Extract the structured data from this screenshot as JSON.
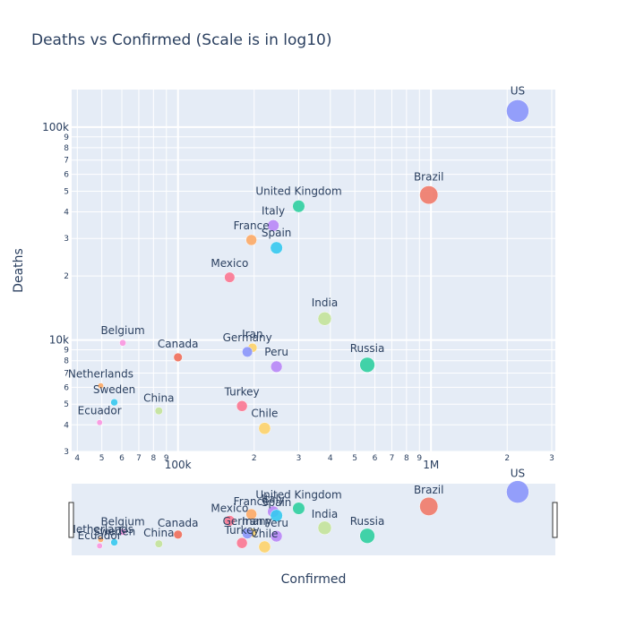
{
  "chart_data": {
    "type": "scatter",
    "title": "Deaths vs Confirmed (Scale is in log10)",
    "xlabel": "Confirmed",
    "ylabel": "Deaths",
    "x_scale": "log",
    "y_scale": "log",
    "xlim": [
      38000,
      3100000
    ],
    "ylim": [
      3000,
      150000
    ],
    "x_major_ticks": [
      {
        "value": 100000,
        "label": "100k"
      },
      {
        "value": 1000000,
        "label": "1M"
      }
    ],
    "x_minor_ticks": [
      {
        "value": 40000,
        "label": "4"
      },
      {
        "value": 50000,
        "label": "5"
      },
      {
        "value": 60000,
        "label": "6"
      },
      {
        "value": 70000,
        "label": "7"
      },
      {
        "value": 80000,
        "label": "8"
      },
      {
        "value": 90000,
        "label": "9"
      },
      {
        "value": 200000,
        "label": "2"
      },
      {
        "value": 300000,
        "label": "3"
      },
      {
        "value": 400000,
        "label": "4"
      },
      {
        "value": 500000,
        "label": "5"
      },
      {
        "value": 600000,
        "label": "6"
      },
      {
        "value": 700000,
        "label": "7"
      },
      {
        "value": 800000,
        "label": "8"
      },
      {
        "value": 900000,
        "label": "9"
      },
      {
        "value": 2000000,
        "label": "2"
      },
      {
        "value": 3000000,
        "label": "3"
      }
    ],
    "y_major_ticks": [
      {
        "value": 10000,
        "label": "10k"
      },
      {
        "value": 100000,
        "label": "100k"
      }
    ],
    "y_minor_ticks": [
      {
        "value": 3000,
        "label": "3"
      },
      {
        "value": 4000,
        "label": "4"
      },
      {
        "value": 5000,
        "label": "5"
      },
      {
        "value": 6000,
        "label": "6"
      },
      {
        "value": 7000,
        "label": "7"
      },
      {
        "value": 8000,
        "label": "8"
      },
      {
        "value": 9000,
        "label": "9"
      },
      {
        "value": 20000,
        "label": "2"
      },
      {
        "value": 30000,
        "label": "3"
      },
      {
        "value": 40000,
        "label": "4"
      },
      {
        "value": 50000,
        "label": "5"
      },
      {
        "value": 60000,
        "label": "6"
      },
      {
        "value": 70000,
        "label": "7"
      },
      {
        "value": 80000,
        "label": "8"
      },
      {
        "value": 90000,
        "label": "9"
      }
    ],
    "grid": true,
    "legend": "none",
    "rangeslider": true,
    "points": [
      {
        "label": "US",
        "x": 2200000,
        "y": 119000,
        "size": 3,
        "color": "#8a96fb"
      },
      {
        "label": "Brazil",
        "x": 980000,
        "y": 48000,
        "size": 2,
        "color": "#ef7a69"
      },
      {
        "label": "United Kingdom",
        "x": 300000,
        "y": 42500,
        "size": 0.9,
        "color": "#2fcfa0"
      },
      {
        "label": "Italy",
        "x": 238000,
        "y": 34500,
        "size": 0.8,
        "color": "#b887f7"
      },
      {
        "label": "France",
        "x": 195000,
        "y": 29500,
        "size": 0.7,
        "color": "#fcaa66"
      },
      {
        "label": "Spain",
        "x": 245000,
        "y": 27100,
        "size": 0.9,
        "color": "#35c9f0"
      },
      {
        "label": "Mexico",
        "x": 160000,
        "y": 19700,
        "size": 0.65,
        "color": "#fb7791"
      },
      {
        "label": "India",
        "x": 380000,
        "y": 12600,
        "size": 1.1,
        "color": "#c3e39a"
      },
      {
        "label": "Belgium",
        "x": 60500,
        "y": 9700,
        "size": 0.25,
        "color": "#fa96e0"
      },
      {
        "label": "Iran",
        "x": 197000,
        "y": 9200,
        "size": 0.5,
        "color": "#fdd36a"
      },
      {
        "label": "Germany",
        "x": 188000,
        "y": 8800,
        "size": 0.65,
        "color": "#8a96fb"
      },
      {
        "label": "Canada",
        "x": 100000,
        "y": 8300,
        "size": 0.45,
        "color": "#ef6e5a"
      },
      {
        "label": "Peru",
        "x": 245000,
        "y": 7500,
        "size": 0.8,
        "color": "#b887f7"
      },
      {
        "label": "Russia",
        "x": 560000,
        "y": 7650,
        "size": 1.35,
        "color": "#2fcfa0"
      },
      {
        "label": "Netherlands",
        "x": 49500,
        "y": 6100,
        "size": 0.2,
        "color": "#fcaa66"
      },
      {
        "label": "Sweden",
        "x": 56000,
        "y": 5100,
        "size": 0.3,
        "color": "#35c9f0"
      },
      {
        "label": "China",
        "x": 84000,
        "y": 4650,
        "size": 0.35,
        "color": "#c3e39a"
      },
      {
        "label": "Turkey",
        "x": 179000,
        "y": 4900,
        "size": 0.7,
        "color": "#fb7791"
      },
      {
        "label": "Ecuador",
        "x": 49000,
        "y": 4100,
        "size": 0.2,
        "color": "#fa96e0"
      },
      {
        "label": "Chile",
        "x": 220000,
        "y": 3850,
        "size": 0.85,
        "color": "#fdd36a"
      }
    ]
  }
}
